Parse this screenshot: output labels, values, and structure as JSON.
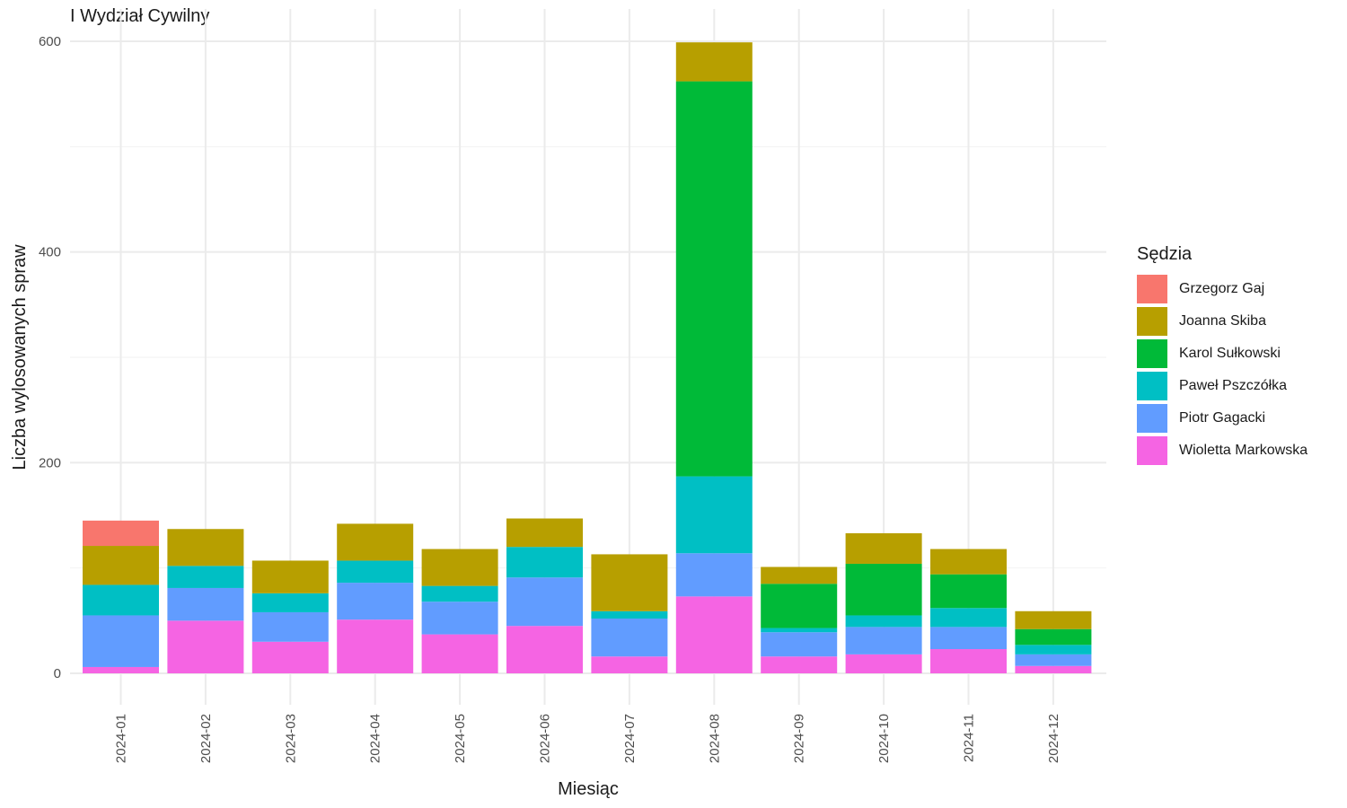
{
  "chart_data": {
    "type": "bar",
    "stacked": true,
    "title": "I Wydział Cywilny",
    "xlabel": "Miesiąc",
    "ylabel": "Liczba wylosowanych spraw",
    "ylim": [
      0,
      600
    ],
    "yticks": [
      0,
      200,
      400,
      600
    ],
    "grid": true,
    "legend_position": "right",
    "legend_title": "Sędzia",
    "categories": [
      "2024-01",
      "2024-02",
      "2024-03",
      "2024-04",
      "2024-05",
      "2024-06",
      "2024-07",
      "2024-08",
      "2024-09",
      "2024-10",
      "2024-11",
      "2024-12"
    ],
    "series": [
      {
        "name": "Wioletta Markowska",
        "color": "#F564E3",
        "values": [
          6,
          50,
          30,
          51,
          37,
          45,
          16,
          73,
          16,
          18,
          23,
          7
        ]
      },
      {
        "name": "Piotr Gagacki",
        "color": "#619CFF",
        "values": [
          49,
          31,
          28,
          35,
          31,
          46,
          36,
          41,
          23,
          26,
          21,
          11
        ]
      },
      {
        "name": "Paweł Pszczółka",
        "color": "#00BFC4",
        "values": [
          29,
          21,
          18,
          21,
          15,
          29,
          7,
          73,
          4,
          11,
          18,
          9
        ]
      },
      {
        "name": "Karol Sułkowski",
        "color": "#00BA38",
        "values": [
          0,
          0,
          0,
          0,
          0,
          0,
          0,
          375,
          42,
          49,
          32,
          15
        ]
      },
      {
        "name": "Joanna Skiba",
        "color": "#B79F00",
        "values": [
          37,
          35,
          31,
          35,
          35,
          27,
          54,
          37,
          16,
          29,
          24,
          17
        ]
      },
      {
        "name": "Grzegorz Gaj",
        "color": "#F8766D",
        "values": [
          24,
          0,
          0,
          0,
          0,
          0,
          0,
          0,
          0,
          0,
          0,
          0
        ]
      }
    ]
  }
}
